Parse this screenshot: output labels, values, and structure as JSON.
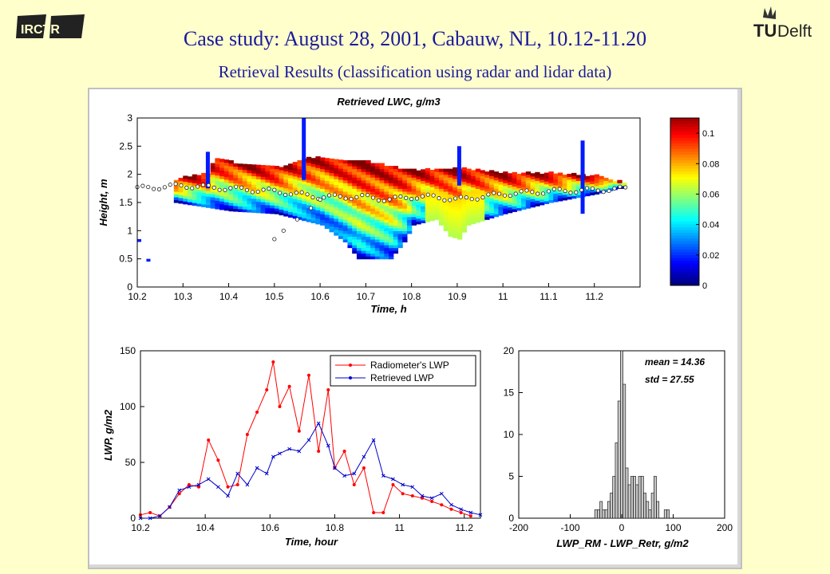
{
  "slide": {
    "title": "Case study: August 28, 2001, Cabauw, NL, 10.12-11.20",
    "subtitle": "Retrieval Results (classification using radar and lidar data)",
    "logo_left": "IRCTR",
    "logo_right_tu": "TU",
    "logo_right_delft": "Delft"
  },
  "chart_data": [
    {
      "type": "heatmap",
      "title": "Retrieved LWC, g/m3",
      "xlabel": "Time, h",
      "ylabel": "Height, m",
      "xlim": [
        10.2,
        11.3
      ],
      "ylim": [
        0,
        3
      ],
      "xticks": [
        "10.2",
        "10.3",
        "10.4",
        "10.5",
        "10.6",
        "10.7",
        "10.8",
        "10.9",
        "11",
        "11.1",
        "11.2"
      ],
      "yticks": [
        "0",
        "0.5",
        "1",
        "1.5",
        "2",
        "2.5",
        "3"
      ],
      "colorbar": {
        "min": 0,
        "max": 0.11,
        "ticks": [
          "0",
          "0.02",
          "0.04",
          "0.06",
          "0.08",
          "0.1"
        ]
      },
      "grid": false,
      "cloud_top": [
        [
          10.28,
          1.9
        ],
        [
          10.35,
          2.0
        ],
        [
          10.36,
          2.2
        ],
        [
          10.37,
          2.25
        ],
        [
          10.4,
          2.2
        ],
        [
          10.5,
          2.1
        ],
        [
          10.55,
          2.25
        ],
        [
          10.6,
          2.3
        ],
        [
          10.7,
          2.2
        ],
        [
          10.8,
          2.05
        ],
        [
          10.9,
          2.1
        ],
        [
          10.95,
          2.05
        ],
        [
          11.0,
          2.0
        ],
        [
          11.1,
          2.0
        ],
        [
          11.2,
          1.95
        ],
        [
          11.25,
          1.85
        ]
      ],
      "cloud_base_boundary": [
        [
          10.28,
          1.5
        ],
        [
          10.4,
          1.35
        ],
        [
          10.5,
          1.3
        ],
        [
          10.6,
          1.1
        ],
        [
          10.65,
          0.8
        ],
        [
          10.68,
          0.5
        ],
        [
          10.75,
          0.5
        ],
        [
          10.78,
          0.8
        ],
        [
          10.8,
          1.1
        ],
        [
          10.85,
          1.2
        ],
        [
          10.88,
          0.9
        ],
        [
          10.9,
          0.85
        ],
        [
          10.92,
          1.1
        ],
        [
          11.0,
          1.3
        ],
        [
          11.1,
          1.5
        ],
        [
          11.2,
          1.65
        ],
        [
          11.25,
          1.75
        ]
      ],
      "lidar_base_points": [
        [
          10.2,
          1.75
        ],
        [
          10.3,
          1.8
        ],
        [
          10.4,
          1.75
        ],
        [
          10.5,
          1.7
        ],
        [
          10.6,
          1.6
        ],
        [
          10.7,
          1.6
        ],
        [
          10.75,
          1.55
        ],
        [
          10.8,
          1.6
        ],
        [
          10.85,
          1.6
        ],
        [
          10.9,
          1.55
        ],
        [
          11.0,
          1.65
        ],
        [
          11.1,
          1.7
        ],
        [
          11.2,
          1.72
        ],
        [
          11.28,
          1.75
        ]
      ],
      "lidar_ramp_points": [
        [
          10.5,
          0.85
        ],
        [
          10.52,
          1.0
        ],
        [
          10.55,
          1.2
        ],
        [
          10.58,
          1.4
        ],
        [
          10.6,
          1.55
        ]
      ]
    },
    {
      "type": "line",
      "xlabel": "Time, hour",
      "ylabel": "LWP, g/m2",
      "xlim": [
        10.2,
        11.25
      ],
      "ylim": [
        0,
        150
      ],
      "xticks": [
        "10.2",
        "10.4",
        "10.6",
        "10.8",
        "11",
        "11.2"
      ],
      "yticks": [
        "0",
        "50",
        "100",
        "150"
      ],
      "legend_position": "top-right",
      "series": [
        {
          "name": "Radiometer's LWP",
          "color": "#ff0000",
          "x": [
            10.2,
            10.23,
            10.26,
            10.29,
            10.32,
            10.35,
            10.38,
            10.41,
            10.44,
            10.47,
            10.5,
            10.53,
            10.56,
            10.59,
            10.61,
            10.63,
            10.66,
            10.69,
            10.72,
            10.75,
            10.78,
            10.8,
            10.83,
            10.86,
            10.89,
            10.92,
            10.95,
            10.98,
            11.01,
            11.04,
            11.07,
            11.1,
            11.13,
            11.16,
            11.19,
            11.22
          ],
          "values": [
            3,
            5,
            2,
            10,
            22,
            30,
            28,
            70,
            52,
            28,
            30,
            75,
            95,
            115,
            140,
            100,
            118,
            78,
            128,
            60,
            115,
            45,
            60,
            30,
            45,
            5,
            5,
            30,
            22,
            20,
            18,
            15,
            12,
            8,
            5,
            2
          ]
        },
        {
          "name": "Retrieved LWP",
          "color": "#0000cc",
          "x": [
            10.2,
            10.23,
            10.26,
            10.29,
            10.32,
            10.35,
            10.38,
            10.41,
            10.44,
            10.47,
            10.5,
            10.53,
            10.56,
            10.59,
            10.61,
            10.63,
            10.66,
            10.69,
            10.72,
            10.75,
            10.78,
            10.8,
            10.83,
            10.86,
            10.89,
            10.92,
            10.95,
            10.98,
            11.01,
            11.04,
            11.07,
            11.1,
            11.13,
            11.16,
            11.19,
            11.22,
            11.25
          ],
          "values": [
            0,
            0,
            2,
            10,
            25,
            28,
            30,
            35,
            28,
            20,
            40,
            30,
            45,
            40,
            55,
            58,
            62,
            60,
            70,
            85,
            65,
            45,
            38,
            40,
            55,
            70,
            38,
            35,
            30,
            28,
            20,
            18,
            22,
            12,
            8,
            5,
            3
          ]
        }
      ]
    },
    {
      "type": "bar",
      "xlabel": "LWP_RM - LWP_Retr, g/m2",
      "ylabel": "",
      "xlim": [
        -200,
        200
      ],
      "ylim": [
        0,
        20
      ],
      "xticks": [
        "-200",
        "-100",
        "0",
        "100",
        "200"
      ],
      "yticks": [
        "0",
        "5",
        "10",
        "15",
        "20"
      ],
      "annotations": [
        "mean = 14.36",
        "std = 27.55"
      ],
      "bin_width": 5,
      "bin_centers": [
        -50,
        -45,
        -40,
        -35,
        -30,
        -25,
        -20,
        -15,
        -10,
        -5,
        0,
        5,
        10,
        15,
        20,
        25,
        30,
        35,
        40,
        45,
        50,
        55,
        60,
        65,
        70,
        75,
        80,
        85,
        90,
        95
      ],
      "values": [
        1,
        1,
        2,
        1,
        1,
        2,
        3,
        5,
        9,
        14,
        20,
        16,
        6,
        4,
        5,
        5,
        4,
        5,
        5,
        3,
        2,
        1,
        3,
        5,
        2,
        0,
        0,
        1,
        1,
        0
      ]
    }
  ]
}
